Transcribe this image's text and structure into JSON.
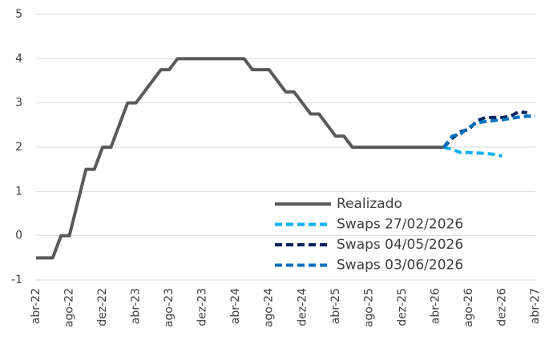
{
  "chart_data": {
    "type": "line",
    "categories": [
      "abr-22",
      null,
      null,
      null,
      "ago-22",
      null,
      null,
      null,
      "dez-22",
      null,
      null,
      null,
      "abr-23",
      null,
      null,
      null,
      "ago-23",
      null,
      null,
      null,
      "dez-23",
      null,
      null,
      null,
      "abr-24",
      null,
      null,
      null,
      "ago-24",
      null,
      null,
      null,
      "dez-24",
      null,
      null,
      null,
      "abr-25",
      null,
      null,
      null,
      "ago-25",
      null,
      null,
      null,
      "dez-25",
      null,
      null,
      null,
      "abr-26",
      null,
      null,
      null,
      "ago-26",
      null,
      null,
      null,
      "dez-26",
      null,
      null,
      null,
      "abr-27"
    ],
    "series": [
      {
        "name": "Realizado",
        "color": "#595959",
        "dashed": false,
        "values": [
          -0.5,
          -0.5,
          -0.5,
          0,
          0,
          0.75,
          1.5,
          1.5,
          2,
          2,
          2.5,
          3,
          3,
          3.25,
          3.5,
          3.75,
          3.75,
          4,
          4,
          4,
          4,
          4,
          4,
          4,
          4,
          4,
          3.75,
          3.75,
          3.75,
          3.5,
          3.25,
          3.25,
          3,
          2.75,
          2.75,
          2.5,
          2.25,
          2.25,
          2,
          2,
          2,
          2,
          2,
          2,
          2,
          2,
          2,
          2,
          2,
          2,
          null,
          null,
          null,
          null,
          null,
          null,
          null,
          null,
          null,
          null,
          null
        ]
      },
      {
        "name": "Swaps 27/02/2026",
        "color": "#00b0f0",
        "dashed": true,
        "values": [
          null,
          null,
          null,
          null,
          null,
          null,
          null,
          null,
          null,
          null,
          null,
          null,
          null,
          null,
          null,
          null,
          null,
          null,
          null,
          null,
          null,
          null,
          null,
          null,
          null,
          null,
          null,
          null,
          null,
          null,
          null,
          null,
          null,
          null,
          null,
          null,
          null,
          null,
          null,
          null,
          null,
          null,
          null,
          null,
          null,
          null,
          null,
          null,
          null,
          2,
          1.95,
          1.88,
          1.88,
          1.87,
          1.86,
          1.84,
          1.8,
          null,
          null,
          null,
          null
        ]
      },
      {
        "name": "Swaps 04/05/2026",
        "color": "#002060",
        "dashed": true,
        "values": [
          null,
          null,
          null,
          null,
          null,
          null,
          null,
          null,
          null,
          null,
          null,
          null,
          null,
          null,
          null,
          null,
          null,
          null,
          null,
          null,
          null,
          null,
          null,
          null,
          null,
          null,
          null,
          null,
          null,
          null,
          null,
          null,
          null,
          null,
          null,
          null,
          null,
          null,
          null,
          null,
          null,
          null,
          null,
          null,
          null,
          null,
          null,
          null,
          null,
          2,
          2.2,
          2.35,
          2.4,
          2.6,
          2.67,
          2.67,
          2.67,
          2.7,
          2.8,
          2.78,
          null
        ]
      },
      {
        "name": "Swaps 03/06/2026",
        "color": "#0070c0",
        "dashed": true,
        "values": [
          null,
          null,
          null,
          null,
          null,
          null,
          null,
          null,
          null,
          null,
          null,
          null,
          null,
          null,
          null,
          null,
          null,
          null,
          null,
          null,
          null,
          null,
          null,
          null,
          null,
          null,
          null,
          null,
          null,
          null,
          null,
          null,
          null,
          null,
          null,
          null,
          null,
          null,
          null,
          null,
          null,
          null,
          null,
          null,
          null,
          null,
          null,
          null,
          null,
          2,
          2.25,
          2.3,
          2.45,
          2.55,
          2.58,
          2.6,
          2.62,
          2.65,
          2.68,
          2.7,
          2.7
        ]
      }
    ],
    "ylim": [
      -1,
      5
    ],
    "yticks": [
      -1,
      0,
      1,
      2,
      3,
      4,
      5
    ],
    "grid": true,
    "legend": "lower right"
  }
}
